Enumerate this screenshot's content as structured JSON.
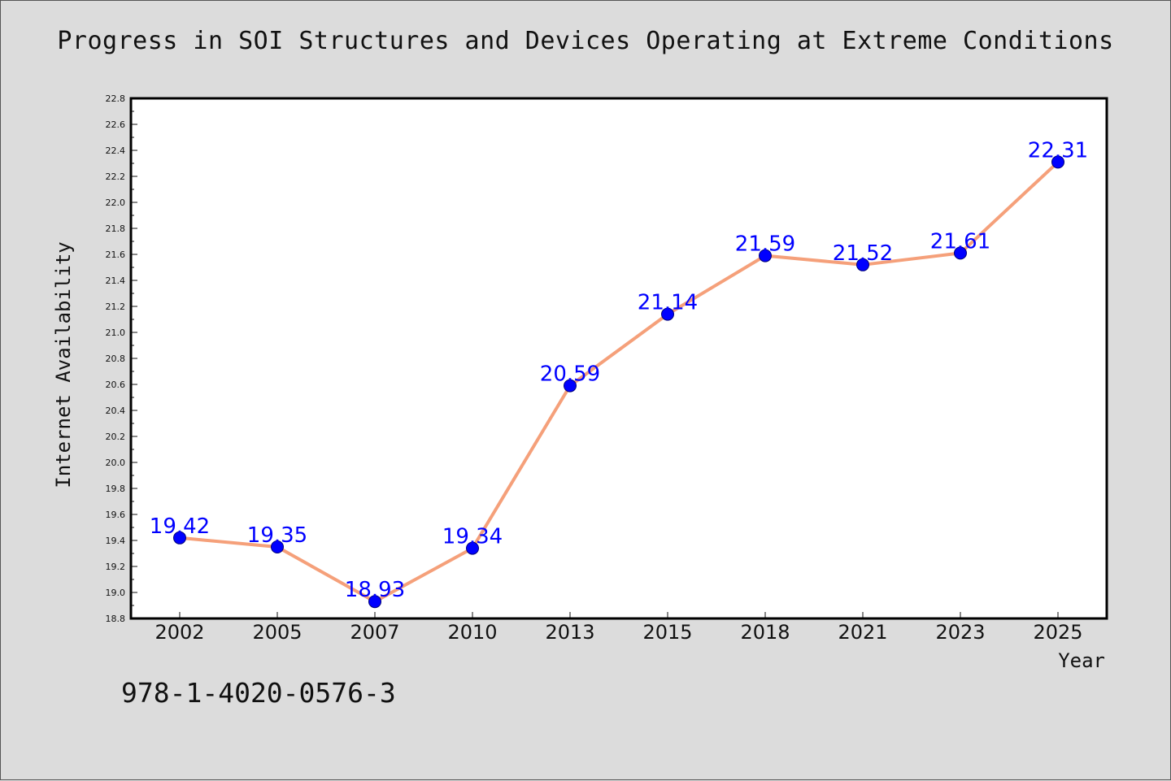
{
  "title": "Progress in SOI Structures and Devices Operating at Extreme Conditions",
  "footer_text": "978-1-4020-0576-3",
  "colors": {
    "background": "#dcdcdc",
    "plot_background": "#ffffff",
    "line": "#f5a07a",
    "marker": "#0000ff",
    "data_label": "#0000ff"
  },
  "chart_data": {
    "type": "line",
    "title": "Progress in SOI Structures and Devices Operating at Extreme Conditions",
    "xlabel": "Year",
    "ylabel": "Internet Availability",
    "categories": [
      "2002",
      "2005",
      "2007",
      "2010",
      "2013",
      "2015",
      "2018",
      "2021",
      "2023",
      "2025"
    ],
    "series": [
      {
        "values": [
          19.42,
          19.35,
          18.93,
          19.34,
          20.59,
          21.14,
          21.59,
          21.52,
          21.61,
          22.31
        ]
      }
    ],
    "data_labels": [
      "19.42",
      "19.35",
      "18.93",
      "19.34",
      "20.59",
      "21.14",
      "21.59",
      "21.52",
      "21.61",
      "22.31"
    ],
    "ylim": [
      18.8,
      22.8
    ],
    "yticks": [
      "18.8",
      "19.0",
      "19.2",
      "19.4",
      "19.6",
      "19.8",
      "20.0",
      "20.2",
      "20.4",
      "20.6",
      "20.8",
      "21.0",
      "21.2",
      "21.4",
      "21.6",
      "21.8",
      "22.0",
      "22.2",
      "22.4",
      "22.6",
      "22.8"
    ],
    "grid": false,
    "legend": "none"
  }
}
